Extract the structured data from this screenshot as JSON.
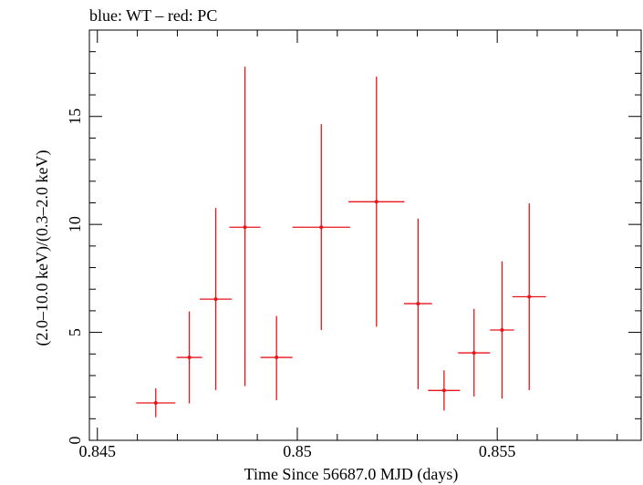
{
  "title": "blue: WT – red: PC",
  "colors": {
    "pc": "#e8141a",
    "axis": "#000000"
  },
  "chart_data": {
    "type": "scatter",
    "title": "blue: WT – red: PC",
    "xlabel": "Time Since 56687.0 MJD (days)",
    "ylabel": "(2.0–10.0 keV)/(0.3–2.0 keV)",
    "xlim": [
      0.8448,
      0.8586
    ],
    "ylim": [
      0,
      19.0
    ],
    "xticks": [
      {
        "value": 0.845,
        "label": "0.845"
      },
      {
        "value": 0.85,
        "label": "0.85"
      },
      {
        "value": 0.855,
        "label": "0.855"
      }
    ],
    "yticks": [
      {
        "value": 0,
        "label": "0"
      },
      {
        "value": 5,
        "label": "5"
      },
      {
        "value": 10,
        "label": "10"
      },
      {
        "value": 15,
        "label": "15"
      }
    ],
    "grid": false,
    "series": [
      {
        "name": "PC",
        "points": [
          {
            "x": 0.84646,
            "xerr": 0.00049,
            "y": 1.73,
            "ylo": 1.07,
            "yhi": 2.41
          },
          {
            "x": 0.8473,
            "xerr": 0.00032,
            "y": 3.84,
            "ylo": 1.71,
            "yhi": 5.97
          },
          {
            "x": 0.84796,
            "xerr": 0.0004,
            "y": 6.54,
            "ylo": 2.33,
            "yhi": 10.76
          },
          {
            "x": 0.84869,
            "xerr": 0.00039,
            "y": 9.87,
            "ylo": 2.51,
            "yhi": 17.3
          },
          {
            "x": 0.84948,
            "xerr": 0.0004,
            "y": 3.84,
            "ylo": 1.86,
            "yhi": 5.76
          },
          {
            "x": 0.8506,
            "xerr": 0.00072,
            "y": 9.87,
            "ylo": 5.11,
            "yhi": 14.64
          },
          {
            "x": 0.85198,
            "xerr": 0.0007,
            "y": 11.05,
            "ylo": 5.26,
            "yhi": 16.84
          },
          {
            "x": 0.85302,
            "xerr": 0.00035,
            "y": 6.33,
            "ylo": 2.37,
            "yhi": 10.27
          },
          {
            "x": 0.85367,
            "xerr": 0.0004,
            "y": 2.31,
            "ylo": 1.38,
            "yhi": 3.24
          },
          {
            "x": 0.85442,
            "xerr": 0.0004,
            "y": 4.05,
            "ylo": 2.03,
            "yhi": 6.09
          },
          {
            "x": 0.85512,
            "xerr": 0.0003,
            "y": 5.11,
            "ylo": 1.93,
            "yhi": 8.29
          },
          {
            "x": 0.8558,
            "xerr": 0.00042,
            "y": 6.65,
            "ylo": 2.33,
            "yhi": 10.97
          }
        ]
      }
    ]
  }
}
